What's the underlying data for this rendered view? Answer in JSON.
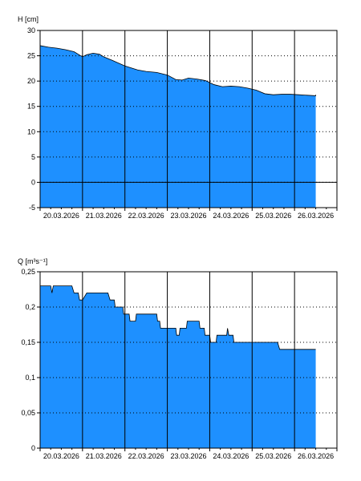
{
  "chart_data": [
    {
      "type": "area",
      "title": "",
      "ylabel": "H [cm]",
      "xlabel": "",
      "ylim": [
        -5,
        30
      ],
      "yticks": [
        "30",
        "25",
        "20",
        "15",
        "10",
        "5",
        "0",
        "-5"
      ],
      "ytick_values": [
        30,
        25,
        20,
        15,
        10,
        5,
        0,
        -5
      ],
      "xlim": [
        0,
        7
      ],
      "xticks": [
        "20.03.2026",
        "21.03.2026",
        "22.03.2026",
        "23.03.2026",
        "24.03.2026",
        "25.03.2026",
        "26.03.2026"
      ],
      "x_unit": "days from 20.03.2026 00:00",
      "zero_line": true,
      "grid": "dotted-horizontal",
      "fill_color": "#1e90ff",
      "series": [
        {
          "x": [
            0,
            0.2,
            0.4,
            0.6,
            0.8,
            0.9,
            1.0,
            1.1,
            1.25,
            1.4,
            1.5,
            1.7,
            2.0,
            2.3,
            2.5,
            2.75,
            3.0,
            3.2,
            3.35,
            3.5,
            3.7,
            3.9,
            4.1,
            4.3,
            4.5,
            4.7,
            4.9,
            5.1,
            5.3,
            5.5,
            5.7,
            5.9,
            6.1,
            6.3,
            6.5,
            6.5
          ],
          "y": [
            27.0,
            26.7,
            26.5,
            26.2,
            25.8,
            25.3,
            24.8,
            25.2,
            25.5,
            25.3,
            24.8,
            24.1,
            23.0,
            22.2,
            21.9,
            21.7,
            21.2,
            20.3,
            20.2,
            20.6,
            20.4,
            20.1,
            19.3,
            18.9,
            19.0,
            18.9,
            18.6,
            18.2,
            17.5,
            17.3,
            17.4,
            17.4,
            17.3,
            17.2,
            17.1,
            17.3
          ]
        }
      ]
    },
    {
      "type": "area",
      "title": "",
      "ylabel": "Q [m³s⁻¹]",
      "xlabel": "",
      "ylim": [
        0,
        0.25
      ],
      "yticks": [
        "0,25",
        "0,2",
        "0,15",
        "0,1",
        "0,05",
        "0"
      ],
      "ytick_values": [
        0.25,
        0.2,
        0.15,
        0.1,
        0.05,
        0
      ],
      "xlim": [
        0,
        7
      ],
      "xticks": [
        "20.03.2026",
        "21.03.2026",
        "22.03.2026",
        "23.03.2026",
        "24.03.2026",
        "25.03.2026",
        "26.03.2026"
      ],
      "x_unit": "days from 20.03.2026 00:00",
      "zero_line": false,
      "grid": "dotted-horizontal",
      "fill_color": "#1e90ff",
      "series": [
        {
          "x": [
            0,
            0.25,
            0.28,
            0.31,
            0.75,
            0.8,
            0.9,
            0.93,
            1.0,
            1.1,
            1.12,
            1.6,
            1.65,
            1.75,
            1.77,
            1.95,
            1.97,
            2.1,
            2.12,
            2.25,
            2.27,
            2.38,
            2.4,
            2.75,
            2.77,
            2.82,
            2.84,
            2.95,
            2.97,
            3.2,
            3.22,
            3.28,
            3.3,
            3.45,
            3.47,
            3.75,
            3.77,
            3.87,
            3.89,
            4.0,
            4.02,
            4.15,
            4.17,
            4.4,
            4.42,
            4.45,
            4.48,
            4.5,
            4.55,
            4.57,
            4.75,
            4.77,
            5.6,
            5.65,
            6.5
          ],
          "y": [
            0.23,
            0.23,
            0.22,
            0.23,
            0.23,
            0.22,
            0.22,
            0.21,
            0.21,
            0.22,
            0.22,
            0.22,
            0.21,
            0.21,
            0.2,
            0.2,
            0.19,
            0.19,
            0.18,
            0.18,
            0.19,
            0.19,
            0.19,
            0.19,
            0.18,
            0.18,
            0.17,
            0.17,
            0.17,
            0.17,
            0.16,
            0.16,
            0.17,
            0.17,
            0.18,
            0.18,
            0.17,
            0.17,
            0.16,
            0.16,
            0.15,
            0.15,
            0.16,
            0.16,
            0.17,
            0.16,
            0.16,
            0.16,
            0.16,
            0.15,
            0.15,
            0.15,
            0.15,
            0.14,
            0.14
          ]
        }
      ]
    }
  ]
}
